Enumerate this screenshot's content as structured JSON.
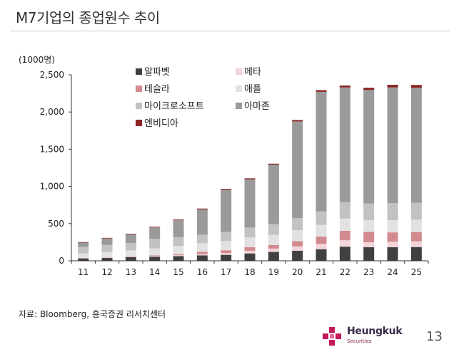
{
  "title": "M7기업의 종업원수 추이",
  "source": "자료: Bloomberg, 흥국증권 리서치센터",
  "logo": {
    "name": "Heungkuk",
    "sub": "Securities"
  },
  "page_number": "13",
  "chart_data": {
    "type": "bar",
    "stacked": true,
    "ylabel": "(1000명)",
    "xlabel": "",
    "ylim": [
      0,
      2500
    ],
    "yticks": [
      0,
      500,
      1000,
      1500,
      2000,
      2500
    ],
    "ytick_labels": [
      "0",
      "500",
      "1,000",
      "1,500",
      "2,000",
      "2,500"
    ],
    "categories": [
      "11",
      "12",
      "13",
      "14",
      "15",
      "16",
      "17",
      "18",
      "19",
      "20",
      "21",
      "22",
      "23",
      "24",
      "25"
    ],
    "legend_position": "upper-left",
    "legend_order": [
      "알파벳",
      "메타",
      "테슬라",
      "애플",
      "마이크로소프트",
      "아마존",
      "엔비디아"
    ],
    "series": [
      {
        "name": "알파벳",
        "color": "#404040",
        "values": [
          32,
          38,
          48,
          54,
          62,
          72,
          80,
          99,
          119,
          135,
          156,
          190,
          182,
          183,
          185
        ]
      },
      {
        "name": "메타",
        "color": "#f2d4d9",
        "values": [
          3,
          5,
          6,
          8,
          13,
          17,
          25,
          36,
          45,
          59,
          72,
          86,
          67,
          74,
          77
        ]
      },
      {
        "name": "테슬라",
        "color": "#d38a8e",
        "values": [
          3,
          3,
          6,
          11,
          14,
          31,
          37,
          49,
          48,
          71,
          100,
          128,
          140,
          125,
          125
        ]
      },
      {
        "name": "애플",
        "color": "#e2e2e2",
        "values": [
          60,
          73,
          80,
          93,
          110,
          116,
          123,
          132,
          137,
          147,
          154,
          164,
          161,
          164,
          166
        ]
      },
      {
        "name": "마이크로소프트",
        "color": "#c2c2c2",
        "values": [
          90,
          94,
          99,
          128,
          118,
          114,
          124,
          131,
          144,
          163,
          181,
          221,
          221,
          228,
          228
        ]
      },
      {
        "name": "아마존",
        "color": "#9a9a9a",
        "values": [
          56,
          88,
          117,
          154,
          231,
          341,
          566,
          648,
          798,
          1298,
          1608,
          1541,
          1525,
          1556,
          1546
        ]
      },
      {
        "name": "엔비디아",
        "color": "#8b2525",
        "values": [
          7,
          7,
          8,
          9,
          9,
          11,
          12,
          13,
          14,
          19,
          23,
          26,
          30,
          36,
          37
        ]
      }
    ]
  }
}
